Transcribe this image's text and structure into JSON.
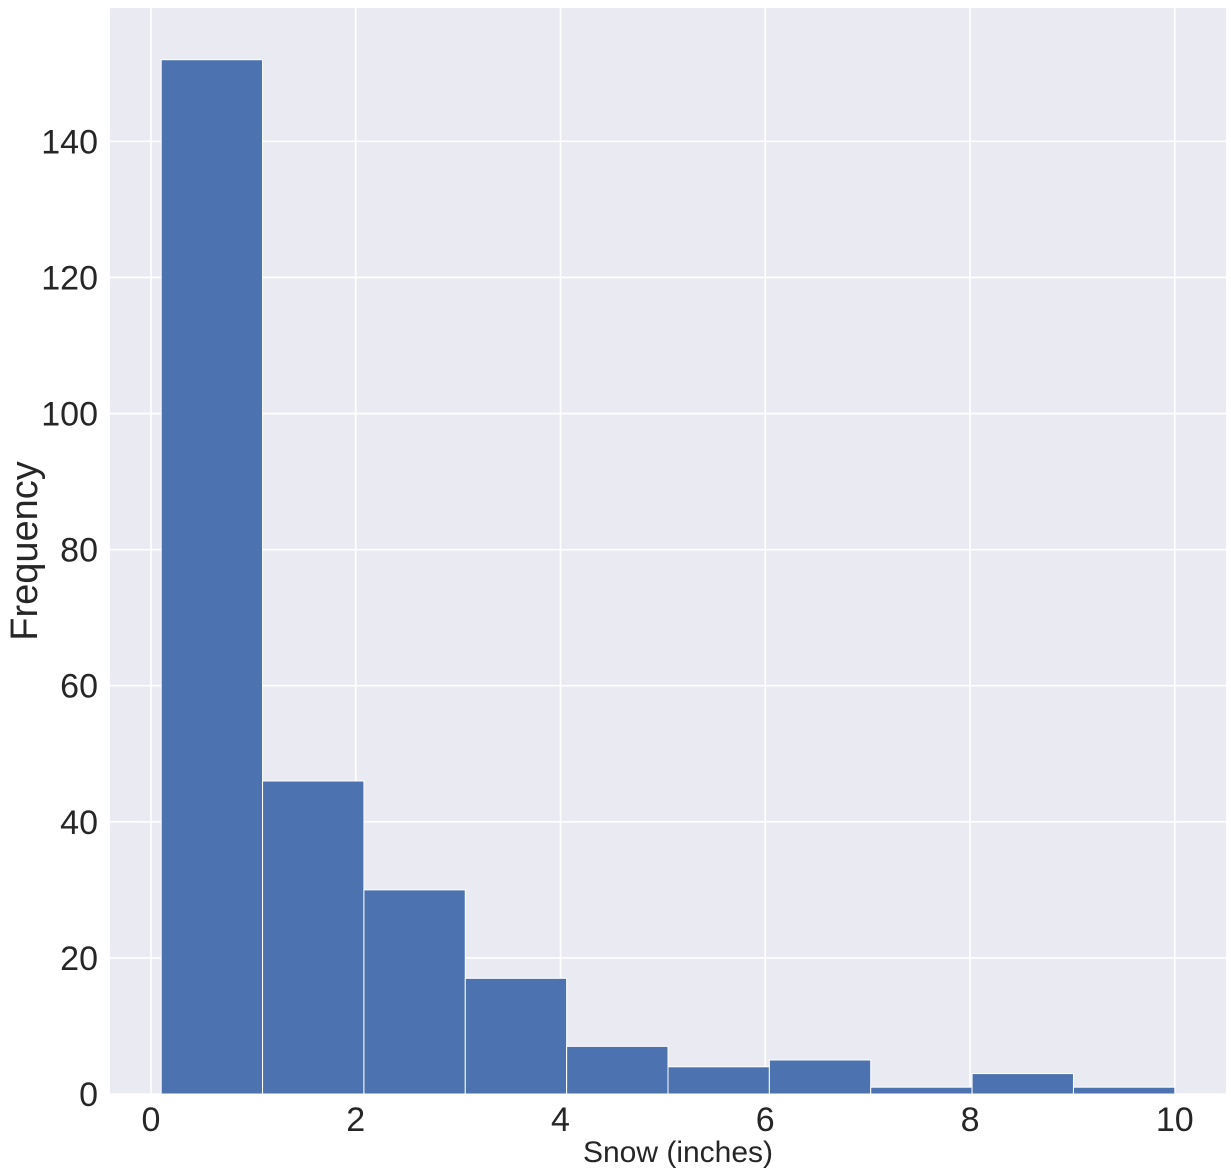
{
  "chart_data": {
    "type": "bar",
    "subtype": "histogram",
    "xlabel": "Snow (inches)",
    "ylabel": "Frequency",
    "bins": [
      {
        "x0": 0.1,
        "x1": 1.09,
        "count": 152
      },
      {
        "x0": 1.09,
        "x1": 2.08,
        "count": 46
      },
      {
        "x0": 2.08,
        "x1": 3.07,
        "count": 30
      },
      {
        "x0": 3.07,
        "x1": 4.06,
        "count": 17
      },
      {
        "x0": 4.06,
        "x1": 5.05,
        "count": 7
      },
      {
        "x0": 5.05,
        "x1": 6.04,
        "count": 4
      },
      {
        "x0": 6.04,
        "x1": 7.03,
        "count": 5
      },
      {
        "x0": 7.03,
        "x1": 8.02,
        "count": 1
      },
      {
        "x0": 8.02,
        "x1": 9.01,
        "count": 3
      },
      {
        "x0": 9.01,
        "x1": 10.0,
        "count": 1
      }
    ],
    "xlim": [
      -0.4,
      10.5
    ],
    "ylim": [
      0,
      159.6
    ],
    "xticks": [
      0,
      2,
      4,
      6,
      8,
      10
    ],
    "yticks": [
      0,
      20,
      40,
      60,
      80,
      100,
      120,
      140
    ],
    "grid": true,
    "colors": {
      "bar": "#4c72b0",
      "background": "#eaeaf2",
      "grid": "#ffffff",
      "text": "#262626"
    }
  }
}
